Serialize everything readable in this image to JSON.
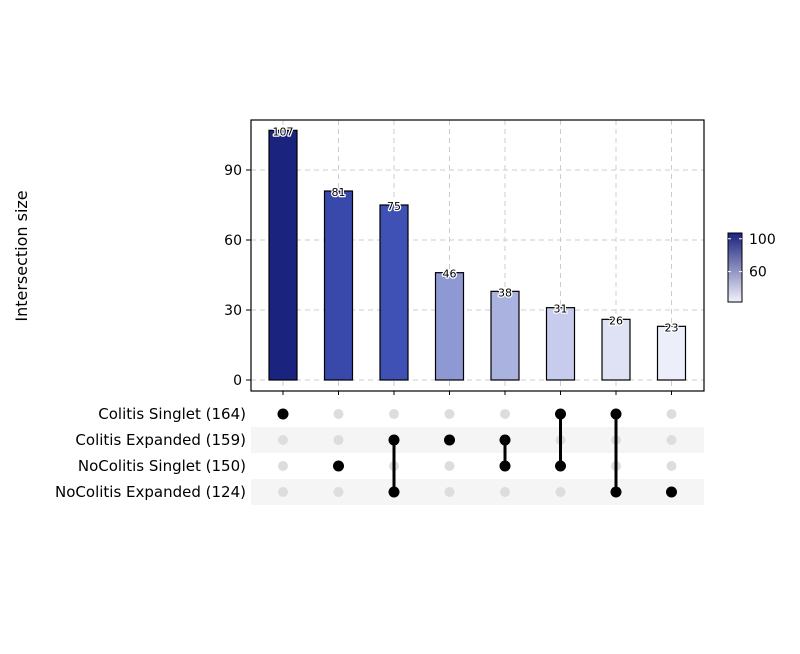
{
  "chart_data": {
    "type": "bar",
    "title": "",
    "xlabel": "",
    "ylabel": "Intersection size",
    "ylim": [
      0,
      108
    ],
    "yticks": [
      0,
      30,
      60,
      90
    ],
    "grid": true,
    "bar_values": [
      107,
      81,
      75,
      46,
      38,
      31,
      26,
      23
    ],
    "bar_labels": [
      "107",
      "81",
      "75",
      "46",
      "38",
      "31",
      "26",
      "23"
    ],
    "sets": [
      {
        "label": "Colitis Singlet (164)"
      },
      {
        "label": "Colitis Expanded (159)"
      },
      {
        "label": "NoColitis Singlet (150)"
      },
      {
        "label": "NoColitis Expanded (124)"
      }
    ],
    "intersections": [
      [
        0
      ],
      [
        2
      ],
      [
        1,
        3
      ],
      [
        1
      ],
      [
        1,
        2
      ],
      [
        0,
        2
      ],
      [
        0,
        3
      ],
      [
        3
      ]
    ],
    "color_scale": {
      "low": "#f2f2fb",
      "high": "#1a237e",
      "ticks": [
        100,
        60
      ],
      "tick_labels": [
        "100",
        "60"
      ]
    },
    "colors": {
      "bar_fills": [
        "#1a237e",
        "#3949ab",
        "#3f51b5",
        "#8e99d4",
        "#aab2e0",
        "#c7cbec",
        "#dfe2f5",
        "#eceefa"
      ],
      "active_dot": "#000000",
      "inactive_dot": "#dddddd",
      "stripe": "#f5f5f5",
      "grid": "#cccccc"
    }
  }
}
